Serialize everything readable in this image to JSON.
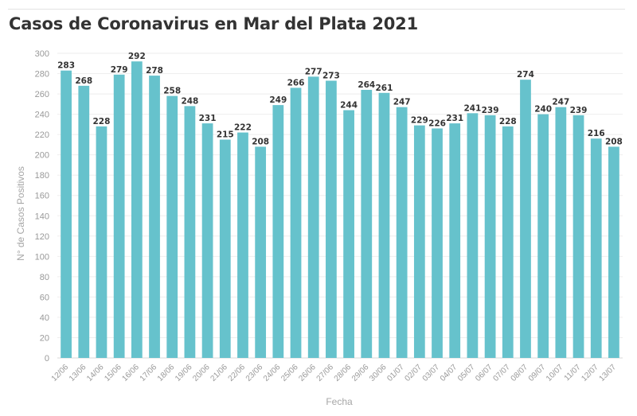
{
  "header": {
    "title": "Casos de Coronavirus en Mar del Plata 2021"
  },
  "colors": {
    "bar": "#66c2cc",
    "grid": "#eeeeee",
    "axis_text": "#999999",
    "value_text": "#333333"
  },
  "chart_data": {
    "type": "bar",
    "title": "Casos de Coronavirus en Mar del Plata 2021",
    "xlabel": "Fecha",
    "ylabel": "N° de Casos Positivos",
    "ylim": [
      0,
      300
    ],
    "yticks": [
      0,
      20,
      40,
      60,
      80,
      100,
      120,
      140,
      160,
      180,
      200,
      220,
      240,
      260,
      280,
      300
    ],
    "grid": true,
    "categories": [
      "12/06",
      "13/06",
      "14/06",
      "15/06",
      "16/06",
      "17/06",
      "18/06",
      "19/06",
      "20/06",
      "21/06",
      "22/06",
      "23/06",
      "24/06",
      "25/06",
      "26/06",
      "27/06",
      "28/06",
      "29/06",
      "30/06",
      "01/07",
      "02/07",
      "03/07",
      "04/07",
      "05/07",
      "06/07",
      "07/07",
      "08/07",
      "09/07",
      "10/07",
      "11/07",
      "12/07",
      "13/07"
    ],
    "values": [
      283,
      268,
      228,
      279,
      292,
      278,
      258,
      248,
      231,
      215,
      222,
      208,
      249,
      266,
      277,
      273,
      244,
      264,
      261,
      247,
      229,
      226,
      231,
      241,
      239,
      228,
      274,
      240,
      247,
      239,
      216,
      208
    ]
  }
}
